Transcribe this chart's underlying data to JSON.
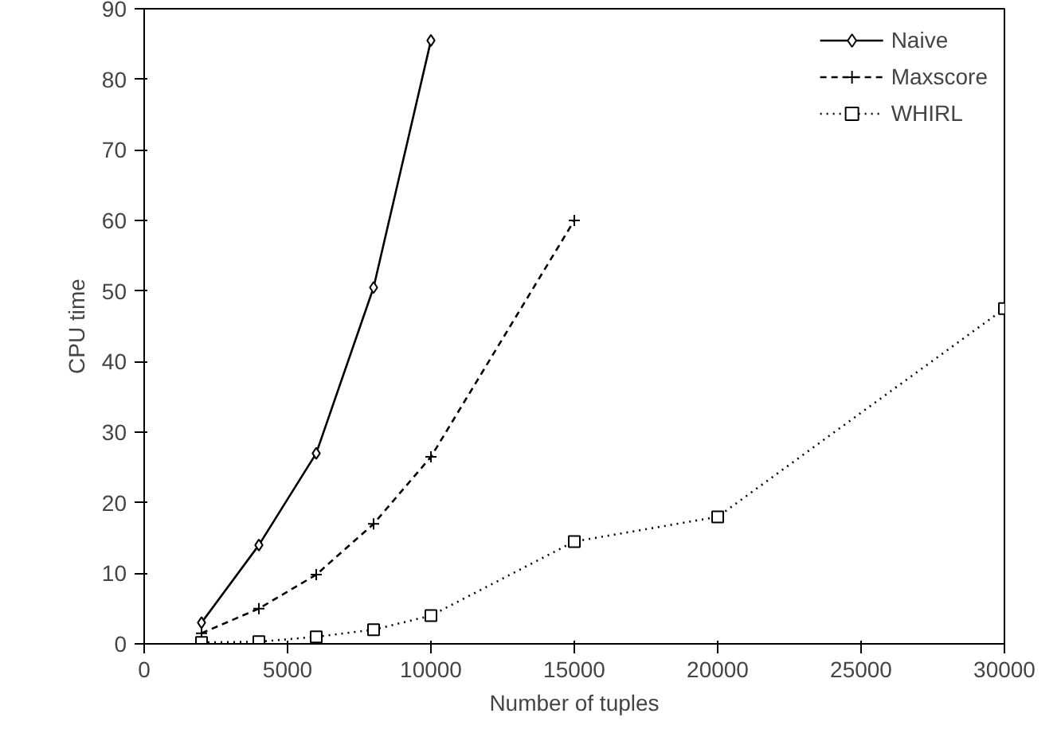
{
  "chart_data": {
    "type": "line",
    "xlabel": "Number of tuples",
    "ylabel": "CPU time",
    "xlim": [
      0,
      30000
    ],
    "ylim": [
      0,
      90
    ],
    "xticks": [
      0,
      5000,
      10000,
      15000,
      20000,
      25000,
      30000
    ],
    "yticks": [
      0,
      10,
      20,
      30,
      40,
      50,
      60,
      70,
      80,
      90
    ],
    "grid": false,
    "legend": "top right",
    "series": [
      {
        "name": "Naive",
        "color": "#000000",
        "marker": "diamond",
        "line_style": "solid",
        "x": [
          2000,
          4000,
          6000,
          8000,
          10000
        ],
        "values": [
          3,
          14,
          27,
          50.5,
          85.5
        ]
      },
      {
        "name": "Maxscore",
        "color": "#000000",
        "marker": "cross",
        "line_style": "dashed",
        "x": [
          2000,
          4000,
          6000,
          8000,
          10000,
          15000
        ],
        "values": [
          1.5,
          5,
          9.8,
          17,
          26.5,
          60
        ]
      },
      {
        "name": "WHIRL",
        "color": "#000000",
        "marker": "square",
        "line_style": "dotted",
        "x": [
          2000,
          4000,
          6000,
          8000,
          10000,
          15000,
          20000,
          30000
        ],
        "values": [
          0.2,
          0.3,
          1,
          2,
          4,
          14.5,
          18,
          47.5
        ]
      }
    ]
  }
}
